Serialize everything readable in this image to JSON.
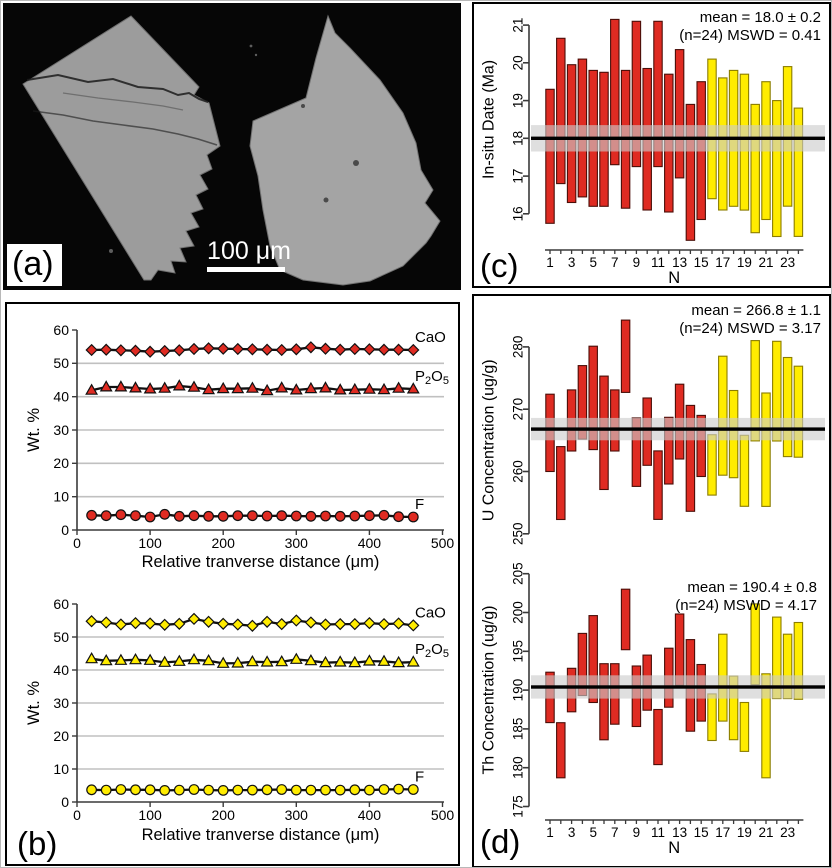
{
  "figure": {
    "panel_labels": {
      "a": "(a)",
      "b": "(b)",
      "c": "(c)",
      "d": "(d)"
    },
    "panel_a": {
      "scale_bar_text": "100 μm"
    }
  },
  "colors": {
    "red": "#df2b22",
    "red_stroke": "#4a0e08",
    "yellow": "#ffec00",
    "yellow_stroke": "#8b7d00",
    "band": "#cbcbcb",
    "mean_line": "#000000",
    "grid": "#c0c0c0",
    "axis": "#3a3a3a",
    "marker_stroke": "#111111",
    "series_line": "#111111",
    "bse_background": "#060606",
    "fragment_left_gray": "#9c9c9c",
    "fragment_right_gray": "#a4a4a4",
    "crack": "#1c1c1c",
    "scale_bar": "#ffffff"
  },
  "chart_data": [
    {
      "id": "c",
      "panel": "c",
      "type": "bar",
      "subtype": "floating-range-bars",
      "stats": {
        "line1": "mean = 18.0 ± 0.2",
        "line2": "(n=24) MSWD = 0.41"
      },
      "mean": 18.0,
      "uncertainty": 0.2,
      "n": 24,
      "mswd": 0.41,
      "band_halfwidth": 0.35,
      "ylabel": "In-situ Date (Ma)",
      "xlabel": "N",
      "ylim": [
        15.2,
        21.4
      ],
      "yticks": [
        16,
        17,
        18,
        19,
        20,
        21
      ],
      "xtick_labels": [
        1,
        3,
        5,
        7,
        9,
        11,
        13,
        15,
        17,
        19,
        21,
        23
      ],
      "n_red": 15,
      "bars": [
        [
          15.75,
          19.3
        ],
        [
          16.8,
          20.65
        ],
        [
          16.3,
          19.95
        ],
        [
          16.45,
          20.1
        ],
        [
          16.2,
          19.8
        ],
        [
          16.2,
          19.75
        ],
        [
          17.3,
          21.15
        ],
        [
          16.15,
          19.8
        ],
        [
          17.25,
          21.1
        ],
        [
          16.1,
          19.85
        ],
        [
          17.25,
          21.1
        ],
        [
          16.05,
          19.7
        ],
        [
          16.95,
          20.35
        ],
        [
          15.3,
          18.9
        ],
        [
          15.85,
          19.5
        ],
        [
          16.4,
          20.1
        ],
        [
          16.1,
          19.6
        ],
        [
          16.2,
          19.8
        ],
        [
          16.1,
          19.7
        ],
        [
          15.5,
          18.9
        ],
        [
          15.85,
          19.5
        ],
        [
          15.4,
          19.0
        ],
        [
          16.2,
          19.9
        ],
        [
          15.4,
          18.8
        ]
      ]
    },
    {
      "id": "u",
      "panel": "d",
      "type": "bar",
      "subtype": "floating-range-bars",
      "stats": {
        "line1": "mean = 266.8 ± 1.1",
        "line2": "(n=24) MSWD = 3.17"
      },
      "mean": 266.8,
      "uncertainty": 1.1,
      "n": 24,
      "mswd": 3.17,
      "band_halfwidth": 1.8,
      "ylabel": "U Concentration (ug/g)",
      "ylim": [
        248.2,
        287.2
      ],
      "yticks": [
        250,
        260,
        270,
        280
      ],
      "n_red": 15,
      "bars": [
        [
          260.0,
          272.4
        ],
        [
          252.3,
          264.0
        ],
        [
          263.3,
          273.1
        ],
        [
          265.2,
          277.0
        ],
        [
          263.5,
          280.1
        ],
        [
          257.1,
          275.3
        ],
        [
          263.3,
          273.1
        ],
        [
          272.7,
          284.3
        ],
        [
          257.6,
          268.6
        ],
        [
          261.0,
          271.8
        ],
        [
          252.3,
          263.3
        ],
        [
          258.0,
          268.7
        ],
        [
          262.0,
          274.0
        ],
        [
          253.6,
          270.6
        ],
        [
          259.2,
          269.0
        ],
        [
          256.2,
          265.9
        ],
        [
          259.4,
          278.5
        ],
        [
          259.0,
          273.0
        ],
        [
          254.4,
          265.8
        ],
        [
          264.9,
          281.0
        ],
        [
          254.4,
          272.6
        ],
        [
          264.9,
          280.9
        ],
        [
          262.4,
          278.3
        ],
        [
          262.3,
          276.9
        ]
      ]
    },
    {
      "id": "th",
      "panel": "d",
      "type": "bar",
      "subtype": "floating-range-bars",
      "stats": {
        "line1": "mean = 190.4 ± 0.8",
        "line2": "(n=24) MSWD = 4.17"
      },
      "mean": 190.4,
      "uncertainty": 0.8,
      "n": 24,
      "mswd": 4.17,
      "band_halfwidth": 1.5,
      "ylabel": "Th Concentration (ug/g)",
      "xlabel": "N",
      "ylim": [
        173.9,
        205.6
      ],
      "yticks": [
        175,
        180,
        185,
        190,
        195,
        200,
        205
      ],
      "xtick_labels": [
        1,
        3,
        5,
        7,
        9,
        11,
        13,
        15,
        17,
        19,
        21,
        23
      ],
      "n_red": 15,
      "bars": [
        [
          185.8,
          192.3
        ],
        [
          178.7,
          185.8
        ],
        [
          187.2,
          192.8
        ],
        [
          189.3,
          197.3
        ],
        [
          188.4,
          199.6
        ],
        [
          183.6,
          193.4
        ],
        [
          185.6,
          193.4
        ],
        [
          195.2,
          203.0
        ],
        [
          185.3,
          193.1
        ],
        [
          187.4,
          194.5
        ],
        [
          180.4,
          187.5
        ],
        [
          187.8,
          195.4
        ],
        [
          190.6,
          199.8
        ],
        [
          184.7,
          196.5
        ],
        [
          186.0,
          193.3
        ],
        [
          183.5,
          189.5
        ],
        [
          186.0,
          197.2
        ],
        [
          183.6,
          191.8
        ],
        [
          182.1,
          188.4
        ],
        [
          190.7,
          201.1
        ],
        [
          178.7,
          192.1
        ],
        [
          188.9,
          199.4
        ],
        [
          188.9,
          197.2
        ],
        [
          188.8,
          198.7
        ]
      ]
    },
    {
      "id": "b1",
      "panel": "b",
      "type": "line",
      "marker_color_key": "red",
      "ylabel": "Wt. %",
      "xlabel": "Relative tranverse distance (μm)",
      "xlim": [
        0,
        500
      ],
      "ylim": [
        0,
        60
      ],
      "xticks": [
        0,
        100,
        200,
        300,
        400,
        500
      ],
      "yticks": [
        0,
        10,
        20,
        30,
        40,
        50,
        60
      ],
      "x": [
        20,
        40,
        60,
        80,
        100,
        120,
        140,
        160,
        180,
        200,
        220,
        240,
        260,
        280,
        300,
        320,
        340,
        360,
        380,
        400,
        420,
        440,
        460
      ],
      "series": [
        {
          "label": "CaO",
          "marker": "diamond",
          "values": [
            54.0,
            54.1,
            53.9,
            53.8,
            53.5,
            53.7,
            53.9,
            54.3,
            54.5,
            54.4,
            54.3,
            54.2,
            54.1,
            54.0,
            54.2,
            54.8,
            54.4,
            54.1,
            54.3,
            54.2,
            54.1,
            54.1,
            54.0
          ]
        },
        {
          "label": "P2O5",
          "label_parts": [
            [
              "P",
              false
            ],
            [
              "2",
              true
            ],
            [
              "O",
              false
            ],
            [
              "5",
              true
            ]
          ],
          "marker": "triangle",
          "values": [
            41.9,
            42.9,
            42.9,
            42.6,
            42.3,
            42.5,
            43.2,
            42.8,
            42.1,
            42.4,
            42.4,
            42.5,
            41.8,
            42.6,
            42.0,
            42.4,
            42.6,
            42.0,
            42.1,
            42.2,
            42.1,
            42.5,
            42.3
          ]
        },
        {
          "label": "F",
          "marker": "circle",
          "values": [
            4.4,
            4.3,
            4.6,
            4.3,
            3.9,
            4.7,
            4.1,
            4.3,
            4.1,
            4.1,
            4.3,
            4.3,
            4.2,
            4.3,
            4.2,
            4.1,
            4.2,
            4.1,
            4.2,
            4.3,
            4.4,
            4.0,
            3.9
          ]
        }
      ]
    },
    {
      "id": "b2",
      "panel": "b",
      "type": "line",
      "marker_color_key": "yellow",
      "ylabel": "Wt. %",
      "xlabel": "Relative tranverse distance (μm)",
      "xlim": [
        0,
        500
      ],
      "ylim": [
        0,
        60
      ],
      "xticks": [
        0,
        100,
        200,
        300,
        400,
        500
      ],
      "yticks": [
        0,
        10,
        20,
        30,
        40,
        50,
        60
      ],
      "x": [
        20,
        40,
        60,
        80,
        100,
        120,
        140,
        160,
        180,
        200,
        220,
        240,
        260,
        280,
        300,
        320,
        340,
        360,
        380,
        400,
        420,
        440,
        460
      ],
      "series": [
        {
          "label": "CaO",
          "marker": "diamond",
          "values": [
            54.8,
            54.4,
            53.8,
            54.2,
            54.1,
            53.7,
            54.0,
            55.5,
            54.6,
            54.0,
            53.8,
            53.4,
            54.6,
            53.9,
            55.0,
            54.4,
            53.8,
            53.9,
            53.9,
            54.2,
            53.9,
            54.1,
            53.5
          ]
        },
        {
          "label": "P2O5",
          "label_parts": [
            [
              "P",
              false
            ],
            [
              "2",
              true
            ],
            [
              "O",
              false
            ],
            [
              "5",
              true
            ]
          ],
          "marker": "triangle",
          "values": [
            43.4,
            42.8,
            42.9,
            43.1,
            42.9,
            42.3,
            42.6,
            43.1,
            42.8,
            42.0,
            42.1,
            42.5,
            42.4,
            42.5,
            43.2,
            42.8,
            42.2,
            42.4,
            42.2,
            42.7,
            42.6,
            42.2,
            42.4
          ]
        },
        {
          "label": "F",
          "marker": "circle",
          "values": [
            3.7,
            3.6,
            3.8,
            3.7,
            3.7,
            3.5,
            3.6,
            3.8,
            3.6,
            3.5,
            3.6,
            3.6,
            3.7,
            3.8,
            3.6,
            3.6,
            3.6,
            3.6,
            3.7,
            3.6,
            3.8,
            3.9,
            3.8
          ]
        }
      ]
    }
  ]
}
